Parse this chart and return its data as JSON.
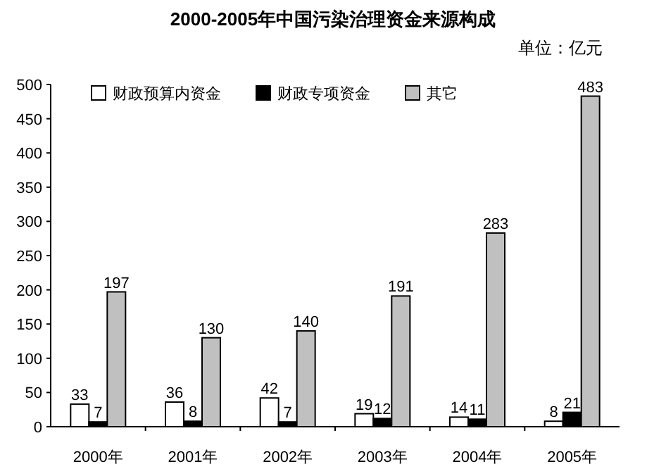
{
  "chart_data": {
    "type": "bar",
    "title": "2000-2005年中国污染治理资金来源构成",
    "subtitle": "单位：亿元",
    "categories": [
      "2000年",
      "2001年",
      "2002年",
      "2003年",
      "2004年",
      "2005年"
    ],
    "series": [
      {
        "name": "财政预算内资金",
        "color": "#ffffff",
        "values": [
          33,
          36,
          42,
          19,
          14,
          8
        ]
      },
      {
        "name": "财政专项资金",
        "color": "#000000",
        "values": [
          7,
          8,
          7,
          12,
          11,
          21
        ]
      },
      {
        "name": "其它",
        "color": "#c0c0c0",
        "values": [
          197,
          130,
          140,
          191,
          283,
          483
        ]
      }
    ],
    "ylim": [
      0,
      500
    ],
    "yticks": [
      0,
      50,
      100,
      150,
      200,
      250,
      300,
      350,
      400,
      450,
      500
    ],
    "data_labels": true,
    "legend": "top",
    "grid": false
  }
}
